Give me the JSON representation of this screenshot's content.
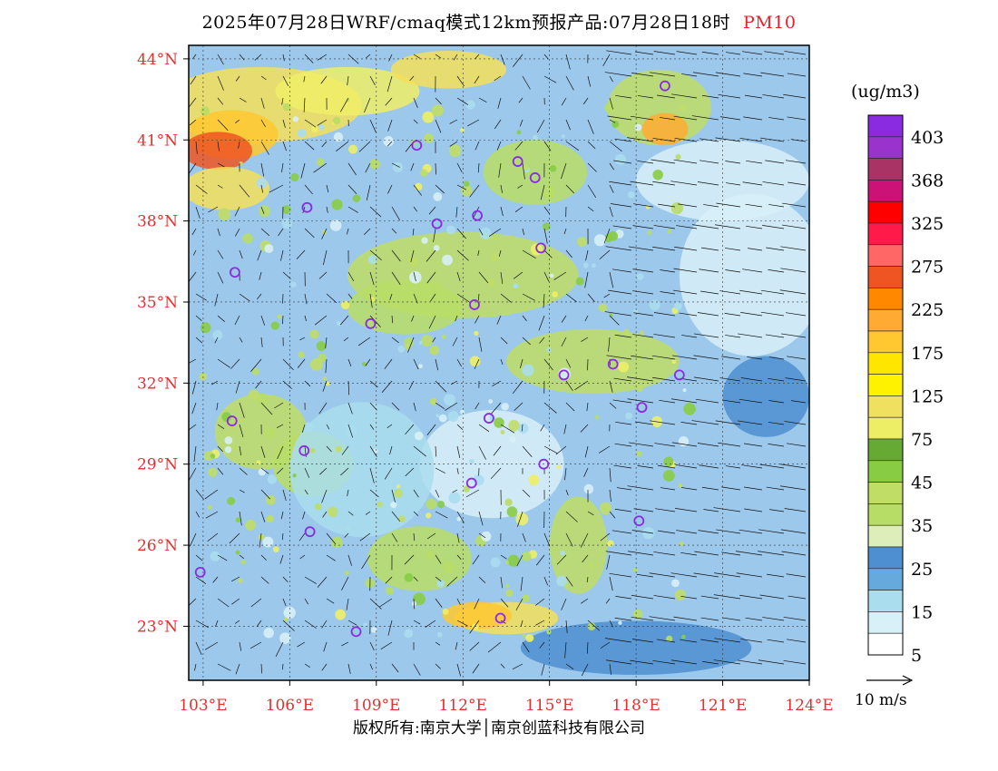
{
  "header": {
    "title": "2025年07月28日WRF/cmaq模式12km预报产品:07月28日18时",
    "pollutant": "PM10"
  },
  "colorbar": {
    "unit": "(ug/m3)",
    "colors": [
      "#8a2be2",
      "#9933cc",
      "#aa3366",
      "#cc1177",
      "#ff0000",
      "#ff1a4a",
      "#ff6666",
      "#ee5522",
      "#ff8800",
      "#ffaa33",
      "#ffc830",
      "#ffe600",
      "#fff200",
      "#f0e060",
      "#eeee66",
      "#66aa33",
      "#88cc44",
      "#c0dd66",
      "#b8dd66",
      "#ddeebb",
      "#4d8fd0",
      "#66aadd",
      "#aaddee",
      "#d8f0f8",
      "#ffffff"
    ],
    "labels": [
      "403",
      "368",
      "325",
      "275",
      "225",
      "175",
      "125",
      "75",
      "45",
      "35",
      "25",
      "15",
      "5"
    ]
  },
  "axes": {
    "y_ticks": [
      "44°N",
      "41°N",
      "38°N",
      "35°N",
      "32°N",
      "29°N",
      "26°N",
      "23°N"
    ],
    "x_ticks": [
      "103°E",
      "106°E",
      "109°E",
      "112°E",
      "115°E",
      "118°E",
      "121°E",
      "124°E"
    ]
  },
  "wind_reference": {
    "label": "10 m/s"
  },
  "footer": {
    "copyright": "版权所有:南京大学│南京创蓝科技有限公司"
  },
  "chart_data": {
    "type": "heatmap",
    "title": "2025年07月28日WRF/cmaq模式12km预报产品:07月28日18时 PM10",
    "variable": "PM10",
    "unit": "ug/m3",
    "lat_range": [
      21,
      44.5
    ],
    "lon_range": [
      102.5,
      124
    ],
    "lat_ticks": [
      44,
      41,
      38,
      35,
      32,
      29,
      26,
      23
    ],
    "lon_ticks": [
      103,
      106,
      109,
      112,
      115,
      118,
      121,
      124
    ],
    "levels": [
      0,
      5,
      15,
      25,
      35,
      45,
      75,
      125,
      175,
      225,
      275,
      325,
      368,
      403
    ],
    "wind_reference_speed": "10 m/s",
    "stations": [
      {
        "lon": 119.0,
        "lat": 43.0
      },
      {
        "lon": 110.4,
        "lat": 40.8
      },
      {
        "lon": 113.9,
        "lat": 40.2
      },
      {
        "lon": 114.5,
        "lat": 39.6
      },
      {
        "lon": 106.6,
        "lat": 38.5
      },
      {
        "lon": 111.1,
        "lat": 37.9
      },
      {
        "lon": 112.5,
        "lat": 38.2
      },
      {
        "lon": 114.7,
        "lat": 37.0
      },
      {
        "lon": 104.1,
        "lat": 36.1
      },
      {
        "lon": 112.4,
        "lat": 34.9
      },
      {
        "lon": 108.8,
        "lat": 34.2
      },
      {
        "lon": 115.5,
        "lat": 32.3
      },
      {
        "lon": 117.2,
        "lat": 32.7
      },
      {
        "lon": 119.5,
        "lat": 32.3
      },
      {
        "lon": 118.2,
        "lat": 31.1
      },
      {
        "lon": 104.0,
        "lat": 30.6
      },
      {
        "lon": 112.9,
        "lat": 30.7
      },
      {
        "lon": 106.5,
        "lat": 29.5
      },
      {
        "lon": 114.8,
        "lat": 29.0
      },
      {
        "lon": 112.3,
        "lat": 28.3
      },
      {
        "lon": 106.7,
        "lat": 26.5
      },
      {
        "lon": 118.1,
        "lat": 26.9
      },
      {
        "lon": 102.9,
        "lat": 25.0
      },
      {
        "lon": 108.3,
        "lat": 22.8
      },
      {
        "lon": 113.3,
        "lat": 23.3
      }
    ]
  }
}
